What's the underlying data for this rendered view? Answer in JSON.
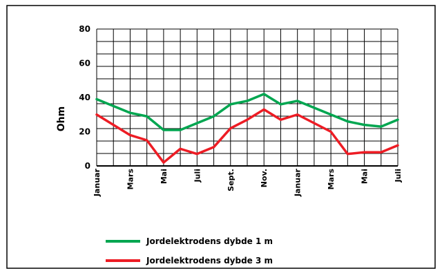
{
  "chart_data": {
    "type": "line",
    "ylabel": "Ohm",
    "ylim": [
      0,
      80
    ],
    "yticks": [
      0,
      20,
      40,
      60,
      80
    ],
    "x_labels": [
      "Januar",
      "Mars",
      "Mai",
      "Juli",
      "Sept.",
      "Nov.",
      "Januar",
      "Mars",
      "Mai",
      "Juli"
    ],
    "grid": true,
    "legend_position": "bottom",
    "series": [
      {
        "name": "Jordelektrodens dybde 1 m",
        "color": "#00a650",
        "values": [
          39,
          35,
          31,
          29,
          21,
          21,
          25,
          29,
          36,
          38,
          42,
          36,
          38,
          34,
          30,
          26,
          24,
          23,
          27
        ]
      },
      {
        "name": "Jordelektrodens dybde 3 m",
        "color": "#ed1c24",
        "values": [
          30,
          24,
          18,
          15,
          2,
          10,
          7,
          11,
          22,
          27,
          33,
          27,
          30,
          25,
          20,
          7,
          8,
          8,
          12
        ]
      }
    ]
  }
}
